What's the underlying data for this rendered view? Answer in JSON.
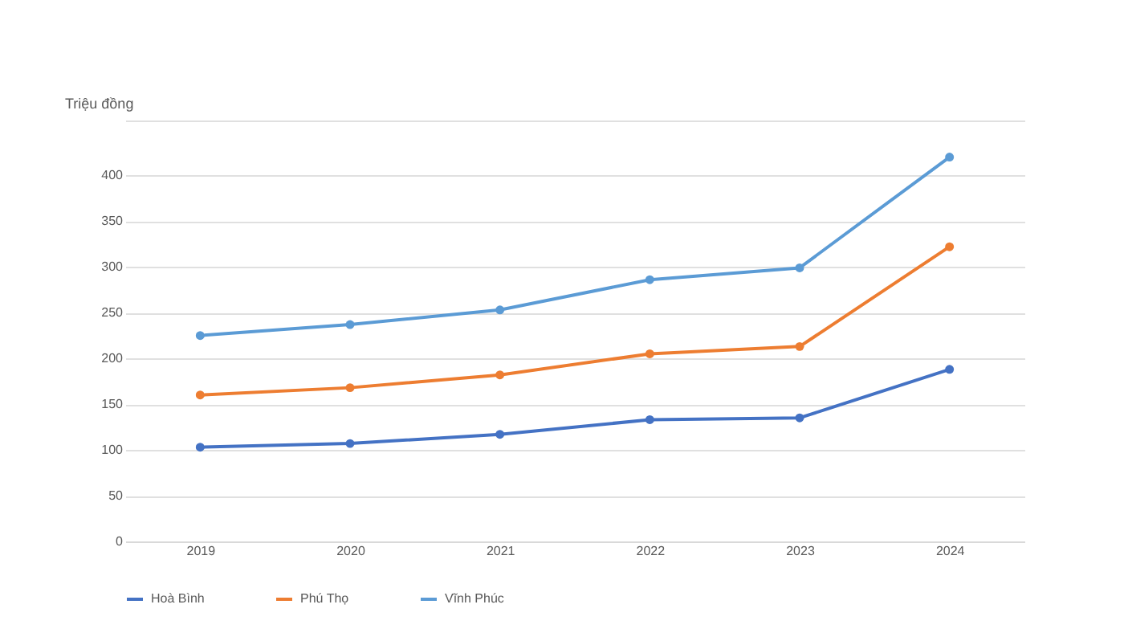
{
  "chart_data": {
    "type": "line",
    "ylabel": "Triệu đồng",
    "categories": [
      "2019",
      "2020",
      "2021",
      "2022",
      "2023",
      "2024"
    ],
    "series": [
      {
        "name": "Hoà Bình",
        "color": "#4472c4",
        "values": [
          103,
          107,
          117,
          133,
          135,
          188
        ]
      },
      {
        "name": "Phú Thọ",
        "color": "#ed7d31",
        "values": [
          160,
          168,
          182,
          205,
          213,
          322
        ]
      },
      {
        "name": "Vĩnh Phúc",
        "color": "#5b9bd5",
        "values": [
          225,
          237,
          253,
          286,
          299,
          420
        ]
      }
    ],
    "ylim": [
      0,
      460
    ],
    "yticks": [
      0,
      50,
      100,
      150,
      200,
      250,
      300,
      350,
      400,
      {
        "value": 460,
        "label": null
      }
    ],
    "grid": "y",
    "legend": "bottom",
    "marker": "circle",
    "line_style": "solid"
  }
}
